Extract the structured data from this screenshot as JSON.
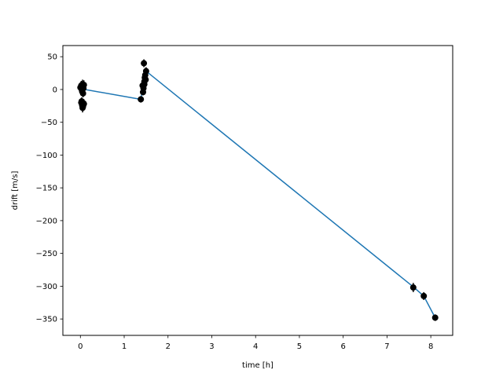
{
  "chart_data": {
    "type": "line",
    "title": "",
    "xlabel": "time [h]",
    "ylabel": "drift [m/s]",
    "xlim": [
      -0.4,
      8.5
    ],
    "ylim": [
      -375,
      67
    ],
    "xticks": [
      0,
      1,
      2,
      3,
      4,
      5,
      6,
      7,
      8
    ],
    "xtick_labels": [
      "0",
      "1",
      "2",
      "3",
      "4",
      "5",
      "6",
      "7",
      "8"
    ],
    "yticks": [
      50,
      0,
      -50,
      -100,
      -150,
      -200,
      -250,
      -300,
      -350
    ],
    "ytick_labels": [
      "50",
      "0",
      "−50",
      "−100",
      "−150",
      "−200",
      "−250",
      "−300",
      "−350"
    ],
    "grid": false,
    "colors": {
      "line": "#1f77b4",
      "markers": "#000000"
    },
    "line": {
      "x": [
        0.0,
        0.1,
        1.38,
        1.5,
        7.6,
        7.84,
        8.1
      ],
      "y": [
        0,
        0,
        -15,
        28,
        -301,
        -315,
        -348
      ]
    },
    "points": {
      "x": [
        0.0,
        0.02,
        0.03,
        0.04,
        0.05,
        0.06,
        0.07,
        0.08,
        0.02,
        0.04,
        0.06,
        0.08,
        0.03,
        0.05,
        0.07,
        1.38,
        1.42,
        1.43,
        1.44,
        1.45,
        1.46,
        1.47,
        1.48,
        1.49,
        1.5,
        1.46,
        7.6,
        7.84,
        8.1
      ],
      "y": [
        3,
        6,
        0,
        -3,
        8,
        -6,
        2,
        7,
        -20,
        -24,
        -26,
        -22,
        -18,
        -28,
        -21,
        -15,
        6,
        -4,
        2,
        40,
        12,
        18,
        22,
        15,
        28,
        8,
        -302,
        -315,
        -348
      ],
      "err": [
        7,
        7,
        6,
        6,
        7,
        6,
        6,
        7,
        7,
        7,
        7,
        7,
        6,
        7,
        6,
        5,
        5,
        5,
        5,
        6,
        5,
        5,
        5,
        5,
        6,
        5,
        7,
        6,
        5
      ]
    }
  }
}
